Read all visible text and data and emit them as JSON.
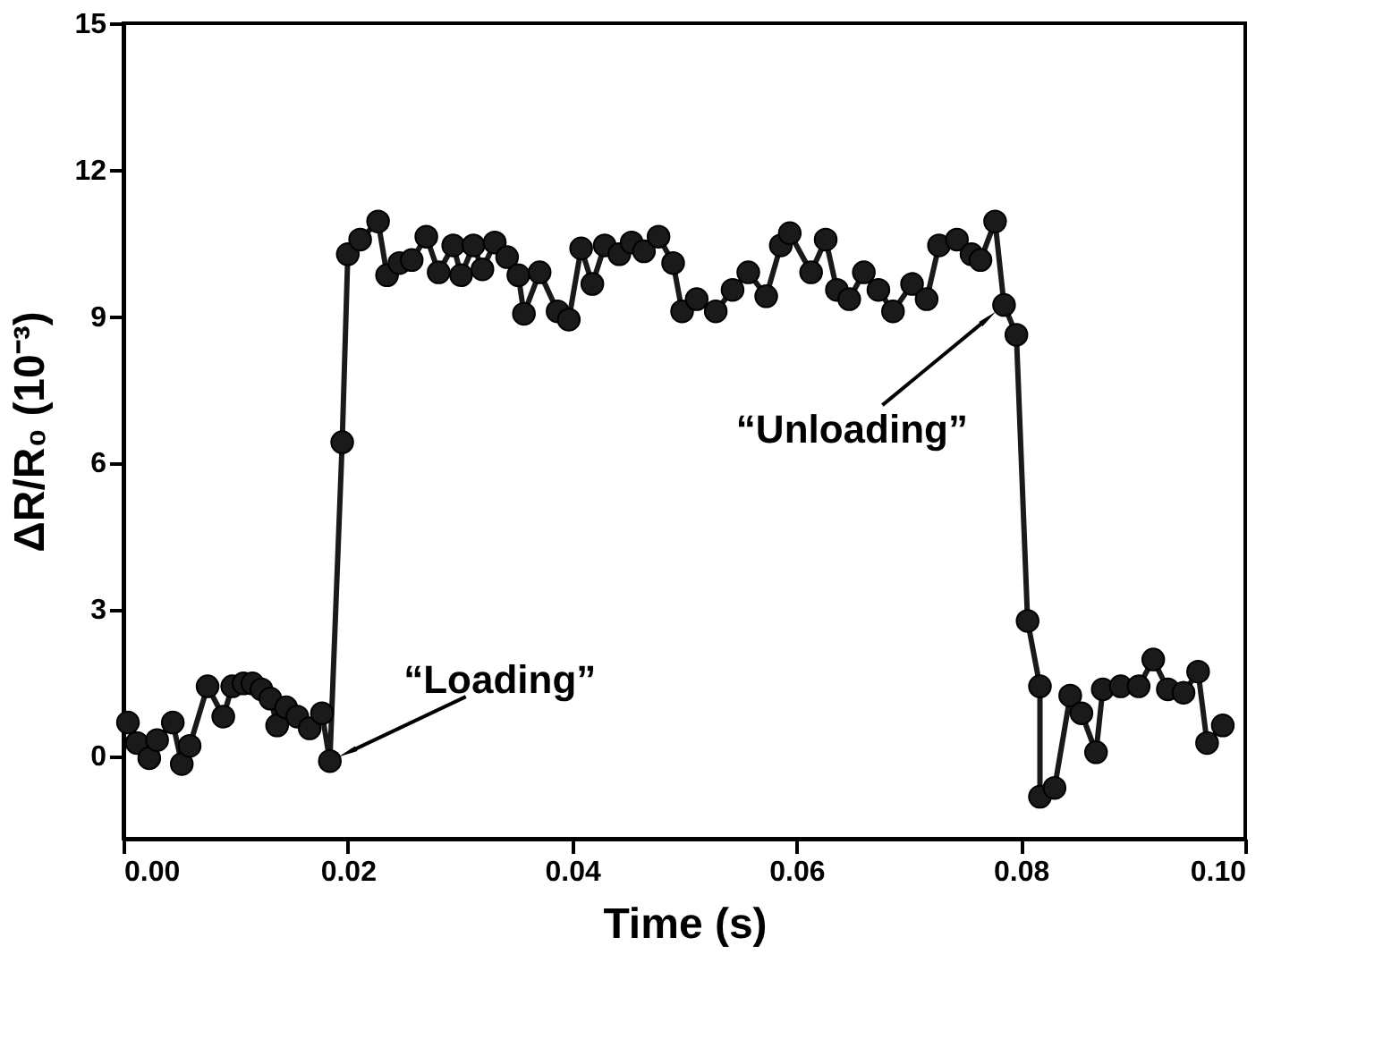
{
  "chart_data": {
    "type": "line",
    "xlabel": "Time (s)",
    "ylabel": "ΔR/R₀ (10⁻³)",
    "xlim": [
      0,
      0.1
    ],
    "xticks": [
      {
        "value": 0,
        "label": "0.00"
      },
      {
        "value": 0.02,
        "label": "0.02"
      },
      {
        "value": 0.04,
        "label": "0.04"
      },
      {
        "value": 0.06,
        "label": "0.06"
      },
      {
        "value": 0.08,
        "label": "0.08"
      },
      {
        "value": 0.1,
        "label": "0.10"
      }
    ],
    "ylim": [
      -1.7,
      15
    ],
    "yticks": [
      0,
      3,
      6,
      9,
      12,
      15
    ],
    "grid": false,
    "marker": "circle",
    "line_style": "solid",
    "series": [
      {
        "color": "#1a1a1a",
        "x": [
          0.0004,
          0.0012,
          0.0023,
          0.003,
          0.0044,
          0.0052,
          0.0059,
          0.0075,
          0.0089,
          0.0097,
          0.0107,
          0.0115,
          0.0123,
          0.0131,
          0.0137,
          0.0145,
          0.0155,
          0.0166,
          0.0177,
          0.0184,
          0.0195,
          0.02,
          0.0211,
          0.0227,
          0.0235,
          0.0246,
          0.0257,
          0.027,
          0.0281,
          0.0294,
          0.0301,
          0.0312,
          0.032,
          0.0331,
          0.0342,
          0.0352,
          0.0357,
          0.0371,
          0.0387,
          0.0397,
          0.0408,
          0.0418,
          0.0429,
          0.0442,
          0.0453,
          0.0464,
          0.0477,
          0.049,
          0.0498,
          0.0511,
          0.0528,
          0.0543,
          0.0557,
          0.0573,
          0.0586,
          0.0594,
          0.0613,
          0.0626,
          0.0636,
          0.0647,
          0.066,
          0.0673,
          0.0686,
          0.0703,
          0.0716,
          0.0727,
          0.0743,
          0.0756,
          0.0764,
          0.0777,
          0.0785,
          0.0796,
          0.0806,
          0.0817,
          0.0817,
          0.083,
          0.0844,
          0.0854,
          0.0867,
          0.0873,
          0.0889,
          0.0905,
          0.0918,
          0.0931,
          0.0945,
          0.0958,
          0.0966,
          0.098
        ],
        "values": [
          0.68,
          0.26,
          -0.05,
          0.32,
          0.68,
          -0.17,
          0.2,
          1.42,
          0.8,
          1.42,
          1.48,
          1.48,
          1.36,
          1.17,
          0.62,
          0.99,
          0.8,
          0.56,
          0.87,
          -0.11,
          6.42,
          10.27,
          10.57,
          10.94,
          9.84,
          10.09,
          10.15,
          10.63,
          9.9,
          10.45,
          9.84,
          10.45,
          9.96,
          10.51,
          10.21,
          9.84,
          9.05,
          9.9,
          9.1,
          8.93,
          10.39,
          9.66,
          10.45,
          10.27,
          10.51,
          10.33,
          10.63,
          10.09,
          9.1,
          9.35,
          9.1,
          9.54,
          9.9,
          9.41,
          10.45,
          10.7,
          9.9,
          10.57,
          9.54,
          9.35,
          9.9,
          9.54,
          9.1,
          9.66,
          9.35,
          10.45,
          10.57,
          10.27,
          10.15,
          10.94,
          9.23,
          8.62,
          2.76,
          1.42,
          -0.84,
          -0.66,
          1.23,
          0.87,
          0.07,
          1.36,
          1.42,
          1.42,
          1.97,
          1.36,
          1.29,
          1.72,
          0.26,
          0.62
        ]
      }
    ],
    "annotations": [
      {
        "text": "“Loading”",
        "x": 0.0184,
        "y": -0.11
      },
      {
        "text": "“Unloading”",
        "x": 0.0785,
        "y": 9.23
      }
    ]
  }
}
